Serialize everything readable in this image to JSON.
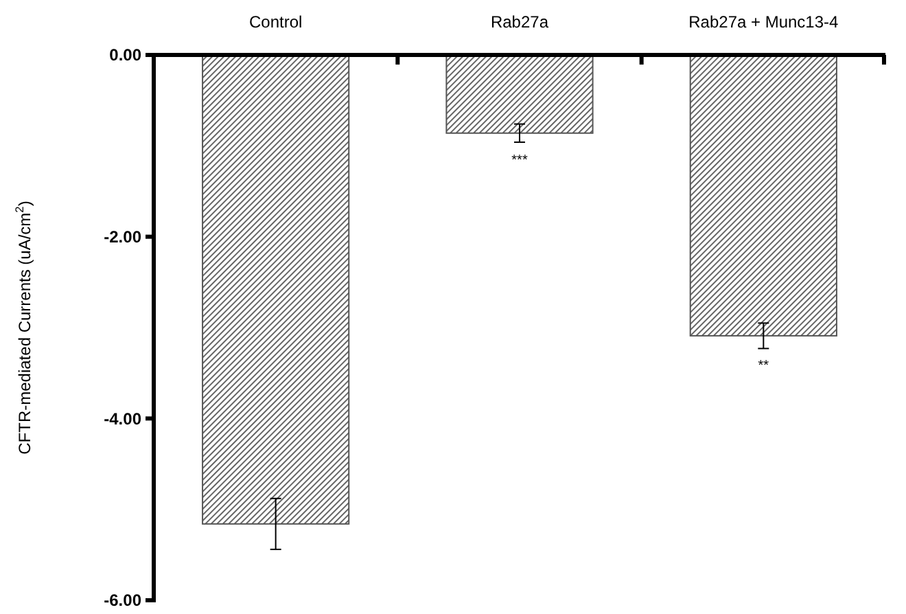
{
  "chart_data": {
    "type": "bar",
    "ylabel": "CFTR-mediated Currents (uA/cm$^{2}$)",
    "categories": [
      "Control",
      "Rab27a",
      "Rab27a + Munc13-4"
    ],
    "values": [
      -5.16,
      -0.86,
      -3.09
    ],
    "errors": [
      0.28,
      0.1,
      0.14
    ],
    "color": "#555555",
    "ylim": [
      -6,
      0
    ],
    "yticks": [
      {
        "value": 0,
        "label": "0.00"
      },
      {
        "value": -2,
        "label": "-2.00"
      },
      {
        "value": -4,
        "label": "-4.00"
      },
      {
        "value": -6,
        "label": "-6.00"
      }
    ],
    "annotations": [
      {
        "text": "***",
        "x": "Rab27a",
        "y": -0.96
      },
      {
        "text": "**",
        "x": "Rab27a + Munc13-4",
        "y": -3.22
      }
    ],
    "grid": false
  }
}
